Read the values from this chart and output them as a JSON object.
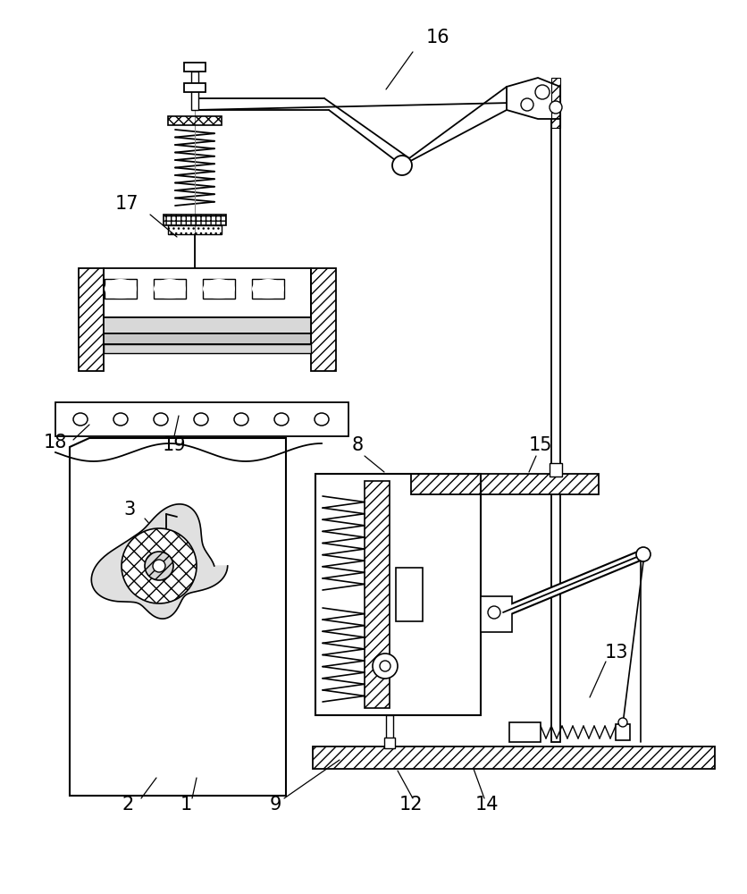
{
  "bg_color": "#ffffff",
  "line_color": "#000000",
  "gray_fill": "#c8c8c8",
  "light_gray": "#d8d8d8",
  "dark_gray": "#a0a0a0"
}
